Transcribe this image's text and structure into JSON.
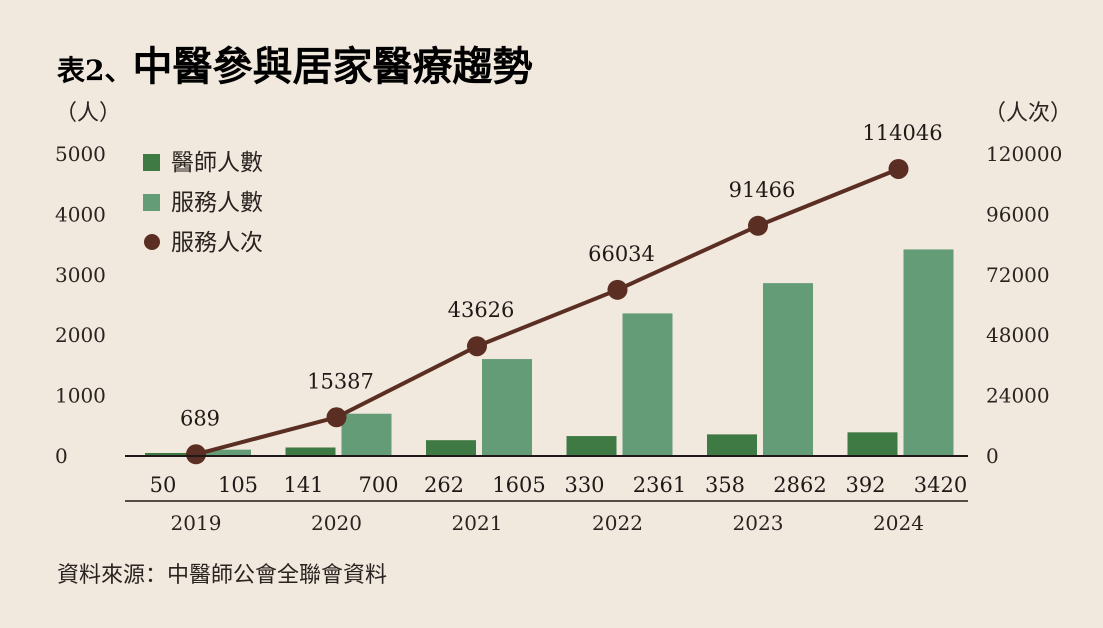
{
  "title_prefix": "表2、",
  "title_main": "中醫參與居家醫療趨勢",
  "source": "資料來源：中醫師公會全聯會資料",
  "colors": {
    "doctors": "#3f7a45",
    "patients": "#649c78",
    "visits": "#5a2e22",
    "axis": "#1f1a17"
  },
  "chart_data": {
    "type": "bar+line",
    "categories": [
      "2019",
      "2020",
      "2021",
      "2022",
      "2023",
      "2024"
    ],
    "left_axis": {
      "unit_label": "（人）",
      "range": [
        0,
        5000
      ],
      "ticks": [
        "0",
        "1000",
        "2000",
        "3000",
        "4000",
        "5000"
      ]
    },
    "right_axis": {
      "unit_label": "（人次）",
      "range": [
        0,
        120000
      ],
      "ticks": [
        "0",
        "24000",
        "48000",
        "72000",
        "96000",
        "120000"
      ]
    },
    "series": [
      {
        "name": "醫師人數",
        "kind": "bar",
        "axis": "left",
        "values": [
          50,
          141,
          262,
          330,
          358,
          392
        ]
      },
      {
        "name": "服務人數",
        "kind": "bar",
        "axis": "left",
        "values": [
          105,
          700,
          1605,
          2361,
          2862,
          3420
        ]
      },
      {
        "name": "服務人次",
        "kind": "line",
        "axis": "right",
        "values": [
          689,
          15387,
          43626,
          66034,
          91466,
          114046
        ]
      }
    ],
    "legend_position": "top-left",
    "grid": false
  }
}
